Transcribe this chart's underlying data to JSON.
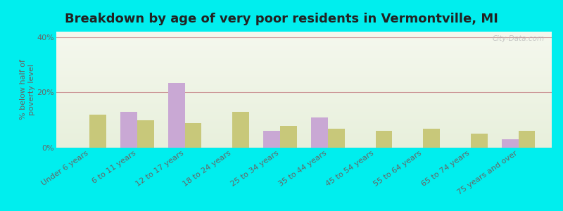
{
  "title": "Breakdown by age of very poor residents in Vermontville, MI",
  "ylabel": "% below half of\npoverty level",
  "categories": [
    "Under 6 years",
    "6 to 11 years",
    "12 to 17 years",
    "18 to 24 years",
    "25 to 34 years",
    "35 to 44 years",
    "45 to 54 years",
    "55 to 64 years",
    "65 to 74 years",
    "75 years and over"
  ],
  "vermontville": [
    0,
    13.0,
    23.5,
    0,
    6.0,
    11.0,
    0,
    0,
    0,
    3.0
  ],
  "michigan": [
    12.0,
    10.0,
    9.0,
    13.0,
    8.0,
    7.0,
    6.0,
    7.0,
    5.0,
    6.0
  ],
  "vermontville_color": "#c9a8d4",
  "michigan_color": "#c8c87a",
  "background_outer": "#00eeee",
  "ylim": [
    0,
    42
  ],
  "yticks": [
    0,
    20,
    40
  ],
  "ytick_labels": [
    "0%",
    "20%",
    "40%"
  ],
  "watermark": "City-Data.com",
  "bar_width": 0.35,
  "title_fontsize": 13,
  "label_fontsize": 8,
  "tick_fontsize": 8,
  "grid_color": "#cc9999",
  "bg_top": "#f5f8ee",
  "bg_bottom": "#e8f0dc"
}
